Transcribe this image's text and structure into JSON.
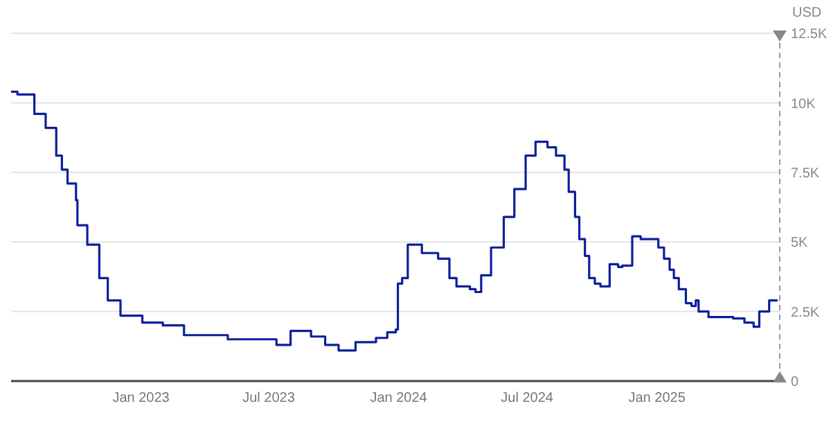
{
  "chart_data": {
    "type": "step",
    "ylabel": "USD",
    "grid": "y",
    "line_style": "solid",
    "marker": "none",
    "xlim": [
      "2022-07-01",
      "2025-06-24"
    ],
    "xticks": [
      {
        "value": "2023-01-01",
        "label": "Jan 2023"
      },
      {
        "value": "2023-07-01",
        "label": "Jul 2023"
      },
      {
        "value": "2024-01-01",
        "label": "Jan 2024"
      },
      {
        "value": "2024-07-01",
        "label": "Jul 2024"
      },
      {
        "value": "2025-01-01",
        "label": "Jan 2025"
      }
    ],
    "ylim": [
      0,
      12500
    ],
    "yticks": [
      0,
      {
        "value": 2500,
        "label": "2.5K"
      },
      {
        "value": 5000,
        "label": "5K"
      },
      {
        "value": 7500,
        "label": "7.5K"
      },
      {
        "value": 10000,
        "label": "10K"
      },
      {
        "value": 12500,
        "label": "12.5K"
      }
    ],
    "x": [
      "2022-07-01",
      "2022-07-10",
      "2022-08-03",
      "2022-08-19",
      "2022-09-03",
      "2022-09-11",
      "2022-09-19",
      "2022-10-01",
      "2022-10-03",
      "2022-10-17",
      "2022-11-03",
      "2022-11-15",
      "2022-12-03",
      "2023-01-03",
      "2023-02-01",
      "2023-03-03",
      "2023-05-04",
      "2023-07-12",
      "2023-08-01",
      "2023-08-30",
      "2023-09-19",
      "2023-10-08",
      "2023-11-01",
      "2023-11-30",
      "2023-12-16",
      "2023-12-28",
      "2023-12-31",
      "2024-01-06",
      "2024-01-14",
      "2024-02-03",
      "2024-02-26",
      "2024-03-13",
      "2024-03-23",
      "2024-04-11",
      "2024-04-19",
      "2024-04-27",
      "2024-05-11",
      "2024-05-29",
      "2024-06-13",
      "2024-06-29",
      "2024-07-13",
      "2024-07-30",
      "2024-08-11",
      "2024-08-23",
      "2024-08-29",
      "2024-09-07",
      "2024-09-13",
      "2024-09-21",
      "2024-09-27",
      "2024-10-05",
      "2024-10-13",
      "2024-10-26",
      "2024-11-07",
      "2024-11-13",
      "2024-11-27",
      "2024-12-09",
      "2025-01-03",
      "2025-01-11",
      "2025-01-19",
      "2025-01-25",
      "2025-02-01",
      "2025-02-11",
      "2025-02-19",
      "2025-02-25",
      "2025-03-01",
      "2025-03-15",
      "2025-04-19",
      "2025-05-05",
      "2025-05-18",
      "2025-05-26",
      "2025-06-09",
      "2025-06-21"
    ],
    "series": [
      {
        "color": "#0b1f9c",
        "values": [
          10400,
          10300,
          9600,
          9100,
          8100,
          7600,
          7100,
          6500,
          5600,
          4900,
          3700,
          2900,
          2350,
          2100,
          2000,
          1650,
          1500,
          1300,
          1800,
          1600,
          1300,
          1100,
          1400,
          1550,
          1750,
          1850,
          3500,
          3700,
          4900,
          4600,
          4400,
          3700,
          3400,
          3300,
          3200,
          3800,
          4800,
          5900,
          6900,
          8100,
          8600,
          8400,
          8100,
          7600,
          6800,
          5900,
          5100,
          4500,
          3700,
          3500,
          3400,
          4200,
          4100,
          4150,
          5200,
          5100,
          4800,
          4400,
          4000,
          3700,
          3300,
          2800,
          2700,
          2900,
          2500,
          2300,
          2250,
          2100,
          1950,
          2500,
          2900,
          2900
        ]
      }
    ]
  }
}
